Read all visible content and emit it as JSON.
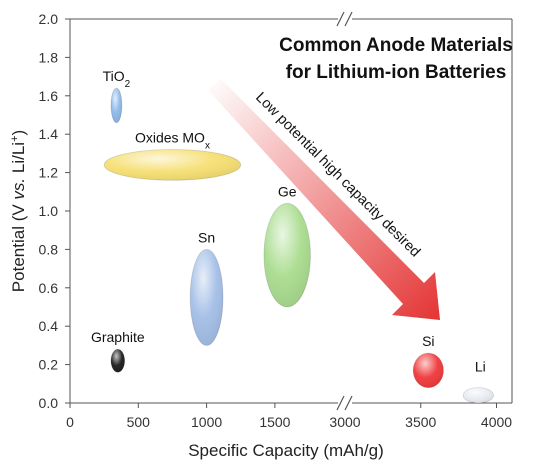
{
  "chart_data": {
    "type": "scatter",
    "title_lines": [
      "Common Anode Materials",
      "for Lithium-ion Batteries"
    ],
    "xlabel": "Specific Capacity (mAh/g)",
    "ylabel": "Potential (V vs. Li/Li+)",
    "ylim": [
      0,
      2.0
    ],
    "x_axis_break": "1850-2850",
    "x_ticks_left": [
      "0",
      "500",
      "1000",
      "1500"
    ],
    "x_ticks_right": [
      "3000",
      "3500",
      "4000"
    ],
    "y_ticks": [
      "0.0",
      "0.2",
      "0.4",
      "0.6",
      "0.8",
      "1.0",
      "1.2",
      "1.4",
      "1.6",
      "1.8",
      "2.0"
    ],
    "grid": false,
    "annotation": "Low potential high capacity desired",
    "materials": [
      {
        "label": "TiO2",
        "capacity_range": [
          300,
          380
        ],
        "potential_range": [
          1.46,
          1.64
        ],
        "color": "#8db8e8"
      },
      {
        "label": "Oxides MOx",
        "capacity_range": [
          250,
          1250
        ],
        "potential_range": [
          1.16,
          1.32
        ],
        "color": "#f6df72"
      },
      {
        "label": "Graphite",
        "capacity_range": [
          300,
          400
        ],
        "potential_range": [
          0.16,
          0.28
        ],
        "color": "#1c1c1c"
      },
      {
        "label": "Sn",
        "capacity_range": [
          880,
          1120
        ],
        "potential_range": [
          0.3,
          0.8
        ],
        "color": "#a3bee6"
      },
      {
        "label": "Ge",
        "capacity_range": [
          1420,
          1760
        ],
        "potential_range": [
          0.5,
          1.04
        ],
        "color": "#a9dc8e"
      },
      {
        "label": "Si",
        "capacity_range": [
          3450,
          3650
        ],
        "potential_range": [
          0.08,
          0.26
        ],
        "color": "#f0383b"
      },
      {
        "label": "Li",
        "capacity_range": [
          3780,
          3980
        ],
        "potential_range": [
          0.0,
          0.08
        ],
        "color": "#e8ecf2"
      }
    ]
  }
}
